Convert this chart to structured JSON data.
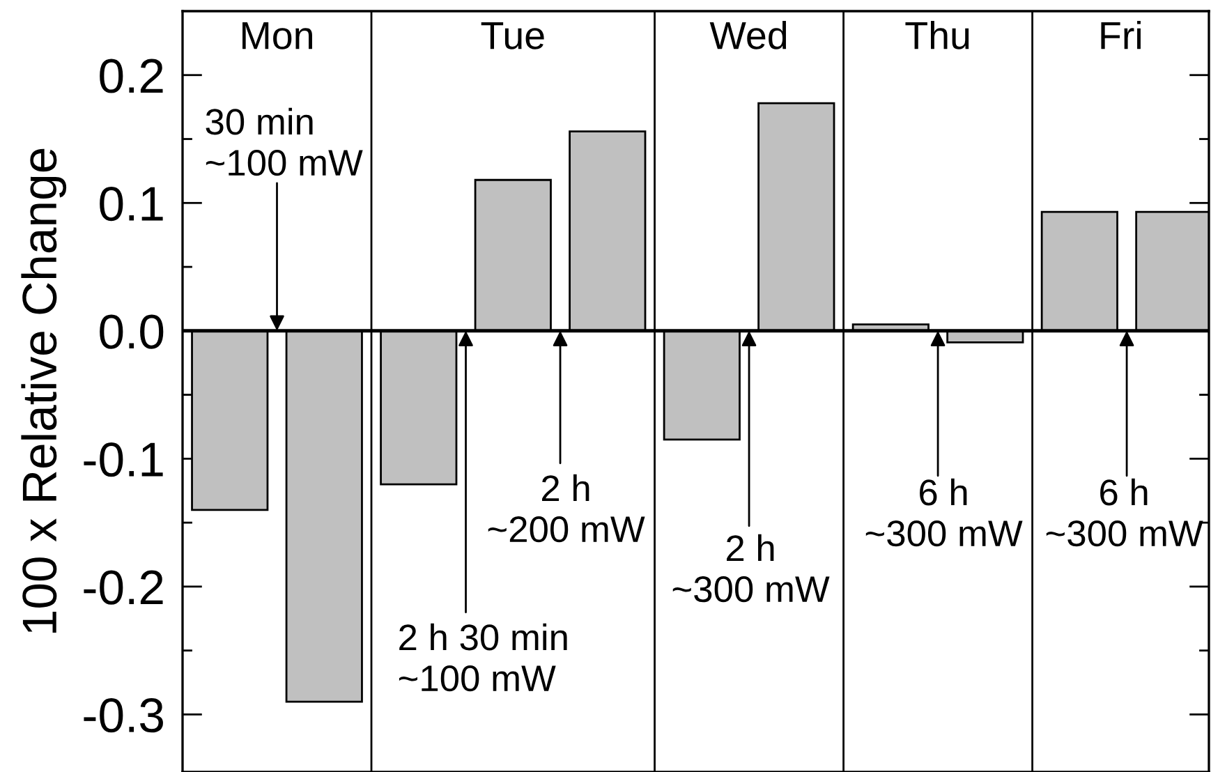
{
  "chart_data": {
    "type": "bar",
    "ylabel": "100 x Relative Change",
    "categories": [
      null,
      null,
      null,
      null,
      null,
      null,
      null,
      null,
      null,
      null,
      null
    ],
    "values": [
      -0.14,
      -0.29,
      -0.12,
      0.118,
      0.156,
      -0.085,
      0.178,
      0.005,
      -0.009,
      0.093,
      0.093
    ],
    "color": "#c0c0c0",
    "ylim": [
      -0.345,
      0.25
    ],
    "yticks": [
      0.2,
      {
        "value": 0.15,
        "label": null
      },
      0.1,
      {
        "value": 0.05,
        "label": null
      },
      {
        "value": 0,
        "label": "0.0"
      },
      {
        "value": -0.05,
        "label": null
      },
      -0.1,
      {
        "value": -0.15,
        "label": null
      },
      -0.2,
      {
        "value": -0.25,
        "label": null
      },
      -0.3
    ],
    "tick_labels": "y",
    "grid": false,
    "ref_lines": [
      {
        "axis": "y",
        "value": 0,
        "color": "#000000"
      }
    ],
    "annotations": [
      "Mon",
      "Tue",
      "Wed",
      "Thu",
      "Fri",
      "30 min\n~100 mW",
      "2 h 30 min\n~100 mW",
      "2 h\n~200 mW",
      "2 h\n~300 mW",
      "6 h\n~300 mW",
      "6 h\n~300 mW"
    ]
  }
}
